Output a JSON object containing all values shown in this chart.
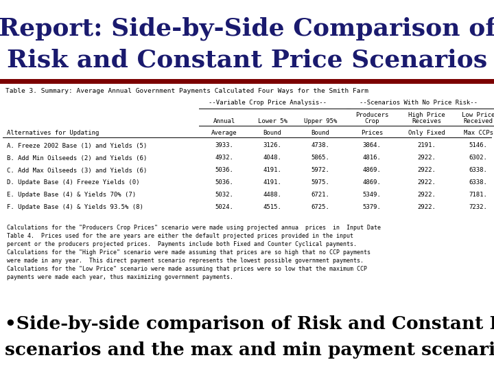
{
  "title_line1": "Report: Side-by-Side Comparison of",
  "title_line2": "Risk and Constant Price Scenarios",
  "title_color": "#1a1a6e",
  "title_fontsize": 26,
  "separator_color": "#7b0000",
  "table_title": "Table 3. Summary: Average Annual Government Payments Calculated Four Ways for the Smith Farm",
  "rows": [
    [
      "A. Freeze 2002 Base (1) and Yields (5)",
      "3933.",
      "3126.",
      "4738.",
      "3864.",
      "2191.",
      "5146."
    ],
    [
      "B. Add Min Oilseeds (2) and Yields (6)",
      "4932.",
      "4048.",
      "5865.",
      "4816.",
      "2922.",
      "6302."
    ],
    [
      "C. Add Max Oilseeds (3) and Yields (6)",
      "5036.",
      "4191.",
      "5972.",
      "4869.",
      "2922.",
      "6338."
    ],
    [
      "D. Update Base (4) Freeze Yields (0)",
      "5036.",
      "4191.",
      "5975.",
      "4869.",
      "2922.",
      "6338."
    ],
    [
      "E. Update Base (4) & Yields 70% (7)",
      "5032.",
      "4488.",
      "6721.",
      "5349.",
      "2922.",
      "7181."
    ],
    [
      "F. Update Base (4) & Yields 93.5% (8)",
      "5024.",
      "4515.",
      "6725.",
      "5379.",
      "2922.",
      "7232."
    ]
  ],
  "footnote_lines": [
    "Calculations for the \"Producers Crop Prices\" scenario were made using projected annua  prices  in  Input Date",
    "Table 4.  Prices used for the are years are either the default projected prices provided in the input",
    "percent or the producers projected prices.  Payments include both Fixed and Counter Cyclical payments.",
    "Calculations for the \"High Price\" scenario were made assuming that prices are so high that no CCP payments",
    "were made in any year.  This direct payment scenario represents the lowest possible government payments.",
    "Calculations for the \"Low Price\" scenario were made assuming that prices were so low that the maximum CCP",
    "payments were made each year, thus maximizing government payments."
  ],
  "bullet_line1": "•Side-by-side comparison of Risk and Constant Price",
  "bullet_line2": "scenarios and the max and min payment scenarios",
  "bullet_fontsize": 19,
  "bg_color": "#ffffff",
  "text_color": "#000000",
  "mono_fontsize": 6.8,
  "table_mono_fontsize": 6.5
}
